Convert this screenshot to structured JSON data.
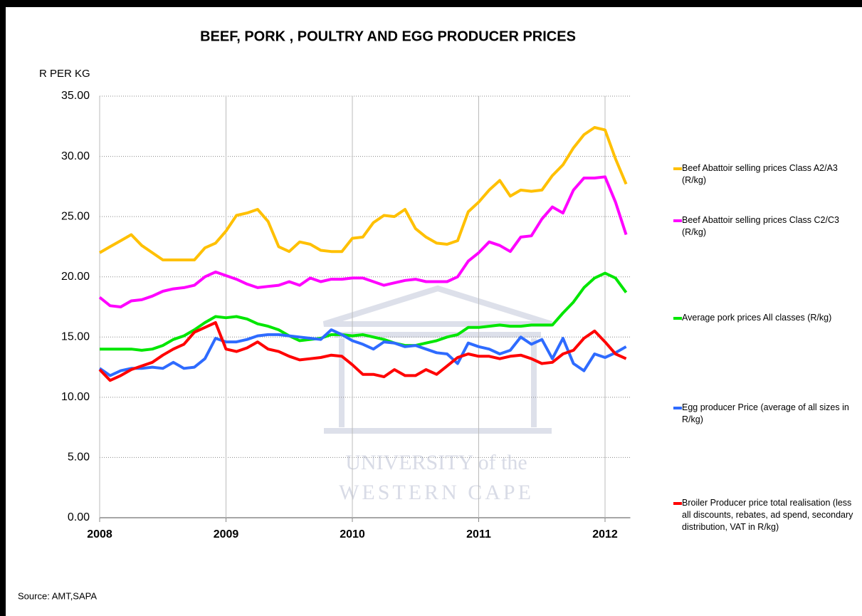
{
  "chart_data": {
    "type": "line",
    "title": "BEEF, PORK , POULTRY AND EGG PRODUCER PRICES",
    "y_label": "R PER KG",
    "source": "Source:  AMT,SAPA",
    "watermark": [
      "UNIVERSITY of the",
      "WESTERN CAPE"
    ],
    "x": [
      2008,
      2008.083,
      2008.167,
      2008.25,
      2008.333,
      2008.417,
      2008.5,
      2008.583,
      2008.667,
      2008.75,
      2008.833,
      2008.917,
      2009,
      2009.083,
      2009.167,
      2009.25,
      2009.333,
      2009.417,
      2009.5,
      2009.583,
      2009.667,
      2009.75,
      2009.833,
      2009.917,
      2010,
      2010.083,
      2010.167,
      2010.25,
      2010.333,
      2010.417,
      2010.5,
      2010.583,
      2010.667,
      2010.75,
      2010.833,
      2010.917,
      2011,
      2011.083,
      2011.167,
      2011.25,
      2011.333,
      2011.417,
      2011.5,
      2011.583,
      2011.667,
      2011.75,
      2011.833,
      2011.917,
      2012,
      2012.083,
      2012.167
    ],
    "xlim": [
      2008,
      2012.2
    ],
    "xticks": [
      2008,
      2009,
      2010,
      2011,
      2012
    ],
    "ylim": [
      0,
      35
    ],
    "yticks": [
      {
        "value": 0,
        "label": "0.00"
      },
      {
        "value": 5,
        "label": "5.00"
      },
      {
        "value": 10,
        "label": "10.00"
      },
      {
        "value": 15,
        "label": "15.00"
      },
      {
        "value": 20,
        "label": "20.00"
      },
      {
        "value": 25,
        "label": "25.00"
      },
      {
        "value": 30,
        "label": "30.00"
      },
      {
        "value": 35,
        "label": "35.00"
      }
    ],
    "grid": true,
    "legend": "right",
    "series": [
      {
        "name": "Beef Abattoir selling prices Class A2/A3 (R/kg)",
        "color": "#ffc000",
        "values": [
          22.0,
          22.5,
          23.0,
          23.5,
          22.6,
          22.0,
          21.4,
          21.4,
          21.4,
          21.4,
          22.4,
          22.8,
          23.8,
          25.1,
          25.3,
          25.6,
          24.6,
          22.5,
          22.1,
          22.9,
          22.7,
          22.2,
          22.1,
          22.1,
          23.2,
          23.3,
          24.5,
          25.1,
          25.0,
          25.6,
          24.0,
          23.3,
          22.8,
          22.7,
          23.0,
          25.4,
          26.2,
          27.2,
          28.0,
          26.7,
          27.2,
          27.1,
          27.2,
          28.4,
          29.3,
          30.7,
          31.8,
          32.4,
          32.2,
          29.8,
          27.7
        ]
      },
      {
        "name": "Beef Abattoir selling prices Class C2/C3 (R/kg)",
        "color": "#ff00ff",
        "values": [
          18.3,
          17.6,
          17.5,
          18.0,
          18.1,
          18.4,
          18.8,
          19.0,
          19.1,
          19.3,
          20.0,
          20.4,
          20.1,
          19.8,
          19.4,
          19.1,
          19.2,
          19.3,
          19.6,
          19.3,
          19.9,
          19.6,
          19.8,
          19.8,
          19.9,
          19.9,
          19.6,
          19.3,
          19.5,
          19.7,
          19.8,
          19.6,
          19.6,
          19.6,
          20.0,
          21.3,
          22.0,
          22.9,
          22.6,
          22.1,
          23.3,
          23.4,
          24.8,
          25.8,
          25.3,
          27.2,
          28.2,
          28.2,
          28.3,
          26.2,
          23.5
        ]
      },
      {
        "name": "Average pork prices All classes (R/kg)",
        "color": "#00e600",
        "values": [
          14.0,
          14.0,
          14.0,
          14.0,
          13.9,
          14.0,
          14.3,
          14.8,
          15.1,
          15.6,
          16.2,
          16.7,
          16.6,
          16.7,
          16.5,
          16.1,
          15.9,
          15.6,
          15.1,
          14.7,
          14.8,
          14.9,
          15.2,
          15.2,
          15.1,
          15.2,
          15.0,
          14.8,
          14.5,
          14.3,
          14.3,
          14.5,
          14.7,
          15.0,
          15.2,
          15.8,
          15.8,
          15.9,
          16.0,
          15.9,
          15.9,
          16.0,
          16.0,
          16.0,
          17.0,
          17.9,
          19.1,
          19.9,
          20.3,
          19.9,
          18.7
        ]
      },
      {
        "name": "Egg producer Price (average of all sizes in R/kg)",
        "color": "#2e6bff",
        "values": [
          12.4,
          11.8,
          12.2,
          12.4,
          12.4,
          12.5,
          12.4,
          12.9,
          12.4,
          12.5,
          13.2,
          14.9,
          14.6,
          14.6,
          14.8,
          15.1,
          15.2,
          15.2,
          15.1,
          15.0,
          14.9,
          14.8,
          15.6,
          15.2,
          14.7,
          14.4,
          14.0,
          14.6,
          14.5,
          14.2,
          14.3,
          14.0,
          13.7,
          13.6,
          12.8,
          14.5,
          14.2,
          14.0,
          13.6,
          13.9,
          15.0,
          14.4,
          14.8,
          13.2,
          14.9,
          12.8,
          12.2,
          13.6,
          13.3,
          13.7,
          14.2
        ]
      },
      {
        "name": "Broiler Producer price total realisation (less all discounts, rebates, ad spend, secondary distribution, VAT in R/kg)",
        "color": "#ff0000",
        "values": [
          12.3,
          11.4,
          11.8,
          12.3,
          12.6,
          12.9,
          13.5,
          14.0,
          14.4,
          15.4,
          15.8,
          16.2,
          14.0,
          13.8,
          14.1,
          14.6,
          14.0,
          13.8,
          13.4,
          13.1,
          13.2,
          13.3,
          13.5,
          13.4,
          12.7,
          11.9,
          11.9,
          11.7,
          12.3,
          11.8,
          11.8,
          12.3,
          11.9,
          12.6,
          13.3,
          13.6,
          13.4,
          13.4,
          13.2,
          13.4,
          13.5,
          13.2,
          12.8,
          12.9,
          13.6,
          13.9,
          14.9,
          15.5,
          14.6,
          13.6,
          13.2
        ]
      }
    ]
  }
}
